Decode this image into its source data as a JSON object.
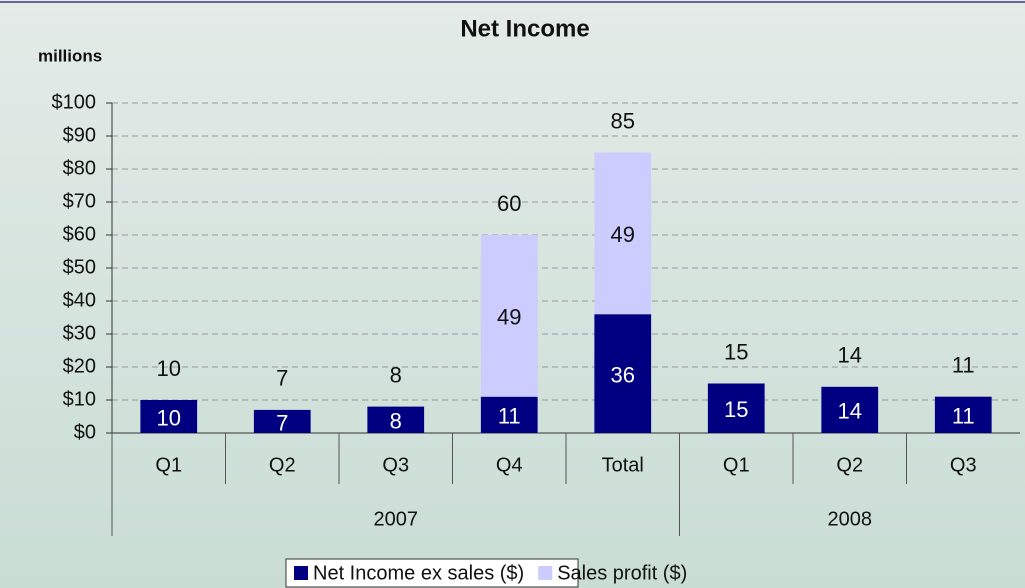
{
  "chart_data": {
    "type": "stacked_bar",
    "title": "Net Income",
    "y_label": "millions",
    "categories": [
      "Q1",
      "Q2",
      "Q3",
      "Q4",
      "Total",
      "Q1",
      "Q2",
      "Q3"
    ],
    "groups": [
      {
        "label": "2007",
        "span": 5
      },
      {
        "label": "2008",
        "span": 3
      }
    ],
    "series": [
      {
        "name": "Net Income ex sales ($)",
        "color": "#000080",
        "values": [
          10,
          7,
          8,
          11,
          36,
          15,
          14,
          11
        ]
      },
      {
        "name": "Sales profit ($)",
        "color": "#ccccff",
        "values": [
          null,
          null,
          null,
          49,
          49,
          null,
          null,
          null
        ]
      }
    ],
    "totals": [
      10,
      7,
      8,
      60,
      85,
      15,
      14,
      11
    ],
    "ylim": [
      0,
      100
    ],
    "yticks": [
      {
        "value": 0,
        "label": "$0"
      },
      {
        "value": 10,
        "label": "$10"
      },
      {
        "value": 20,
        "label": "$20"
      },
      {
        "value": 30,
        "label": "$30"
      },
      {
        "value": 40,
        "label": "$40"
      },
      {
        "value": 50,
        "label": "$50"
      },
      {
        "value": 60,
        "label": "$60"
      },
      {
        "value": 70,
        "label": "$70"
      },
      {
        "value": 80,
        "label": "$80"
      },
      {
        "value": 90,
        "label": "$90"
      },
      {
        "value": 100,
        "label": "$100"
      }
    ],
    "grid": true,
    "legend": "bottom"
  }
}
